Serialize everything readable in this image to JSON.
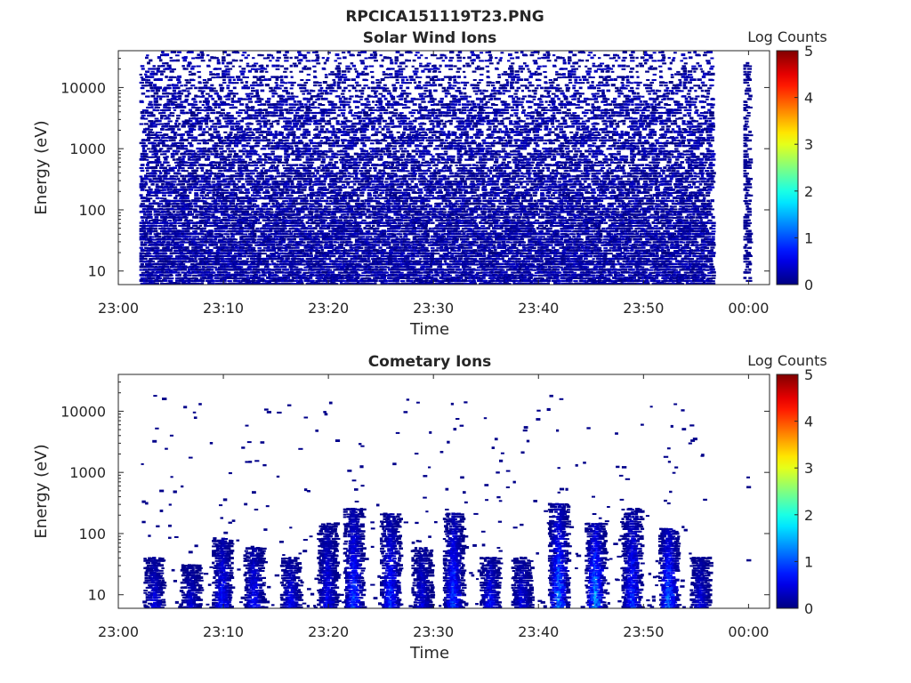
{
  "figure_title": "RPCICA151119T23.PNG",
  "chart_data": [
    {
      "type": "heatmap",
      "title": "Solar Wind Ions",
      "xlabel": "Time",
      "ylabel": "Energy (eV)",
      "y_scale": "log",
      "x_ticks": [
        "23:00",
        "23:10",
        "23:20",
        "23:30",
        "23:40",
        "23:50",
        "00:00"
      ],
      "x_tick_minutes": [
        0,
        10,
        20,
        30,
        40,
        50,
        60
      ],
      "xlim_minutes": [
        0,
        62
      ],
      "y_ticks": [
        "10",
        "100",
        "1000",
        "10000"
      ],
      "y_tick_values": [
        10,
        100,
        1000,
        10000
      ],
      "ylim": [
        6,
        40000
      ],
      "colorbar": {
        "label": "Log Counts",
        "min": 0,
        "max": 5,
        "ticks": [
          "0",
          "1",
          "2",
          "3",
          "4",
          "5"
        ]
      },
      "data_description": {
        "dense_coverage_minutes": [
          2.0,
          56.5
        ],
        "late_segment_minutes": [
          59.5,
          60.0
        ],
        "dominant_log_counts": [
          0,
          0.4
        ],
        "energy_range_eV": [
          6,
          40000
        ]
      }
    },
    {
      "type": "heatmap",
      "title": "Cometary Ions",
      "xlabel": "Time",
      "ylabel": "Energy (eV)",
      "y_scale": "log",
      "x_ticks": [
        "23:00",
        "23:10",
        "23:20",
        "23:30",
        "23:40",
        "23:50",
        "00:00"
      ],
      "x_tick_minutes": [
        0,
        10,
        20,
        30,
        40,
        50,
        60
      ],
      "xlim_minutes": [
        0,
        62
      ],
      "y_ticks": [
        "10",
        "100",
        "1000",
        "10000"
      ],
      "y_tick_values": [
        10,
        100,
        1000,
        10000
      ],
      "ylim": [
        6,
        40000
      ],
      "colorbar": {
        "label": "Log Counts",
        "min": 0,
        "max": 5,
        "ticks": [
          "0",
          "1",
          "2",
          "3",
          "4",
          "5"
        ]
      },
      "bursts": [
        {
          "t": 3.0,
          "emax": 40,
          "peak": 0.6
        },
        {
          "t": 6.5,
          "emax": 30,
          "peak": 0.5
        },
        {
          "t": 9.5,
          "emax": 80,
          "peak": 0.9
        },
        {
          "t": 12.5,
          "emax": 60,
          "peak": 0.8
        },
        {
          "t": 16.0,
          "emax": 40,
          "peak": 0.7
        },
        {
          "t": 19.5,
          "emax": 150,
          "peak": 0.7
        },
        {
          "t": 22.0,
          "emax": 250,
          "peak": 1.1
        },
        {
          "t": 25.5,
          "emax": 200,
          "peak": 1.0
        },
        {
          "t": 28.5,
          "emax": 60,
          "peak": 0.6
        },
        {
          "t": 31.5,
          "emax": 200,
          "peak": 1.1
        },
        {
          "t": 35.0,
          "emax": 40,
          "peak": 0.8
        },
        {
          "t": 38.0,
          "emax": 40,
          "peak": 0.6
        },
        {
          "t": 41.5,
          "emax": 300,
          "peak": 1.4
        },
        {
          "t": 45.0,
          "emax": 150,
          "peak": 1.6
        },
        {
          "t": 48.5,
          "emax": 250,
          "peak": 1.0
        },
        {
          "t": 52.0,
          "emax": 120,
          "peak": 1.4
        },
        {
          "t": 55.0,
          "emax": 40,
          "peak": 0.6
        }
      ]
    }
  ]
}
